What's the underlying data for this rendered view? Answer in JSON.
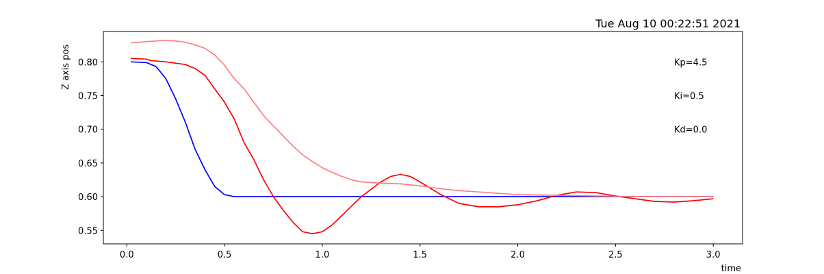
{
  "chart_data": {
    "type": "line",
    "title": "Tue Aug 10 00:22:51 2021",
    "xlabel": "time",
    "ylabel": "Z axis pos",
    "xlim": [
      -0.12,
      3.15
    ],
    "ylim": [
      0.53,
      0.845
    ],
    "grid": false,
    "xticks": [
      0.0,
      0.5,
      1.0,
      1.5,
      2.0,
      2.5,
      3.0
    ],
    "xtick_labels": [
      "0.0",
      "0.5",
      "1.0",
      "1.5",
      "2.0",
      "2.5",
      "3.0"
    ],
    "yticks": [
      0.55,
      0.6,
      0.65,
      0.7,
      0.75,
      0.8
    ],
    "ytick_labels": [
      "0.55",
      "0.60",
      "0.65",
      "0.70",
      "0.75",
      "0.80"
    ],
    "annotations": [
      {
        "text": "Kp=4.5",
        "x": 2.8,
        "y": 0.8
      },
      {
        "text": "Ki=0.5",
        "x": 2.8,
        "y": 0.75
      },
      {
        "text": "Kd=0.0",
        "x": 2.8,
        "y": 0.7
      }
    ],
    "series": [
      {
        "color": "#0000ff",
        "x": [
          0.02,
          0.1,
          0.15,
          0.2,
          0.25,
          0.3,
          0.35,
          0.4,
          0.45,
          0.5,
          0.55,
          0.6,
          0.7,
          0.8,
          0.9,
          1.0,
          1.5,
          2.0,
          2.5,
          2.7,
          2.9,
          3.0
        ],
        "y": [
          0.8,
          0.799,
          0.793,
          0.775,
          0.745,
          0.71,
          0.67,
          0.64,
          0.615,
          0.603,
          0.6,
          0.6,
          0.6,
          0.6,
          0.6,
          0.6,
          0.6,
          0.6,
          0.6,
          0.6,
          0.6,
          0.6
        ]
      },
      {
        "color": "#ff0000",
        "x": [
          0.02,
          0.1,
          0.12,
          0.2,
          0.3,
          0.35,
          0.4,
          0.45,
          0.5,
          0.55,
          0.6,
          0.65,
          0.7,
          0.75,
          0.8,
          0.85,
          0.9,
          0.95,
          1.0,
          1.05,
          1.1,
          1.2,
          1.3,
          1.35,
          1.4,
          1.45,
          1.5,
          1.6,
          1.7,
          1.8,
          1.9,
          2.0,
          2.1,
          2.2,
          2.3,
          2.4,
          2.5,
          2.6,
          2.7,
          2.8,
          2.9,
          3.0
        ],
        "y": [
          0.805,
          0.804,
          0.802,
          0.8,
          0.796,
          0.79,
          0.78,
          0.76,
          0.74,
          0.715,
          0.68,
          0.655,
          0.625,
          0.6,
          0.58,
          0.562,
          0.548,
          0.545,
          0.548,
          0.558,
          0.572,
          0.6,
          0.622,
          0.63,
          0.633,
          0.63,
          0.622,
          0.604,
          0.59,
          0.585,
          0.585,
          0.588,
          0.594,
          0.602,
          0.607,
          0.606,
          0.601,
          0.597,
          0.593,
          0.592,
          0.594,
          0.597
        ]
      },
      {
        "color": "#ff7f7f",
        "x": [
          0.02,
          0.1,
          0.2,
          0.25,
          0.3,
          0.35,
          0.4,
          0.45,
          0.5,
          0.55,
          0.6,
          0.65,
          0.7,
          0.75,
          0.8,
          0.85,
          0.9,
          0.95,
          1.0,
          1.05,
          1.1,
          1.15,
          1.2,
          1.3,
          1.4,
          1.5,
          1.6,
          1.7,
          1.8,
          1.9,
          2.0,
          2.2,
          2.4,
          2.6,
          2.8,
          2.9,
          3.0
        ],
        "y": [
          0.828,
          0.83,
          0.832,
          0.831,
          0.829,
          0.825,
          0.82,
          0.81,
          0.795,
          0.775,
          0.76,
          0.74,
          0.72,
          0.705,
          0.69,
          0.675,
          0.662,
          0.652,
          0.643,
          0.636,
          0.63,
          0.625,
          0.622,
          0.62,
          0.619,
          0.616,
          0.612,
          0.609,
          0.607,
          0.605,
          0.603,
          0.602,
          0.601,
          0.6,
          0.6,
          0.6,
          0.6
        ]
      }
    ]
  }
}
